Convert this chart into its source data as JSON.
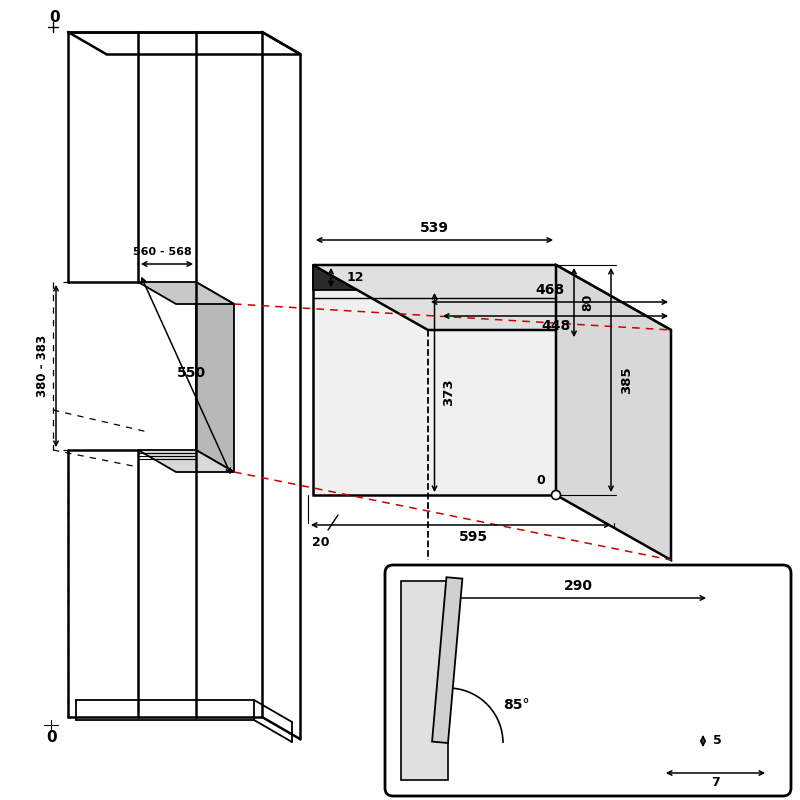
{
  "bg_color": "#ffffff",
  "line_color": "#000000",
  "red_dashed_color": "#cc0000",
  "gray_fill": "#b0b0b0",
  "gray_fill2": "#d0d0d0",
  "annotations": {
    "dim_0_top": "0",
    "dim_0_bottom": "0",
    "dim_380_383": "380 - 383",
    "dim_560_568": "560 - 568",
    "dim_550": "550",
    "dim_468": "468",
    "dim_448": "448",
    "dim_539": "539",
    "dim_12": "12",
    "dim_80": "80",
    "dim_385": "385",
    "dim_373": "373",
    "dim_595": "595",
    "dim_20": "20",
    "dim_290": "290",
    "dim_85": "85°",
    "dim_5": "5",
    "dim_7": "7"
  }
}
